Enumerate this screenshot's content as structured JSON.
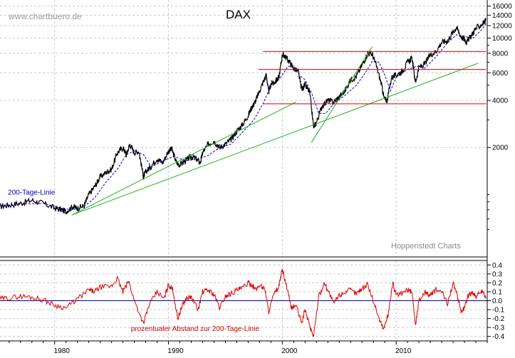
{
  "watermark": "www.chartbuero.de",
  "credit": "Hoppenstedt Charts",
  "chart_data": [
    {
      "type": "line",
      "title": "DAX",
      "y_scale": "log",
      "ylim": [
        400,
        17500
      ],
      "xlim": [
        1975.2,
        2018.0
      ],
      "yticks": [
        2000,
        4000,
        6000,
        8000,
        10000,
        12000,
        14000,
        16000
      ],
      "ytick_labels": [
        "2000",
        "4000",
        "6000",
        "8000",
        "10000",
        "12000",
        "14000",
        "16000"
      ],
      "xticks": [
        1980,
        1990,
        2000,
        2010
      ],
      "xtick_labels": [
        "1980",
        "1990",
        "2000",
        "2010"
      ],
      "grid": true,
      "series": [
        {
          "name": "DAX",
          "color": "#000000",
          "x": [
            1975.2,
            1976.0,
            1977.0,
            1978.0,
            1979.0,
            1980.0,
            1980.6,
            1981.0,
            1981.6,
            1982.0,
            1982.6,
            1983.0,
            1983.6,
            1984.0,
            1984.6,
            1985.0,
            1985.5,
            1986.0,
            1986.3,
            1986.6,
            1987.0,
            1987.4,
            1987.8,
            1988.0,
            1988.4,
            1989.0,
            1989.5,
            1990.0,
            1990.3,
            1990.7,
            1991.0,
            1991.5,
            1992.0,
            1992.4,
            1992.8,
            1993.0,
            1993.5,
            1994.0,
            1994.5,
            1995.0,
            1995.5,
            1996.0,
            1996.5,
            1997.0,
            1997.3,
            1997.6,
            1997.9,
            1998.3,
            1998.6,
            1998.8,
            1999.0,
            1999.4,
            1999.7,
            2000.0,
            2000.2,
            2000.6,
            2001.0,
            2001.4,
            2001.7,
            2002.0,
            2002.4,
            2002.75,
            2003.0,
            2003.5,
            2004.0,
            2004.5,
            2005.0,
            2005.5,
            2006.0,
            2006.5,
            2007.0,
            2007.5,
            2007.9,
            2008.3,
            2008.7,
            2008.95,
            2009.2,
            2009.6,
            2010.0,
            2010.5,
            2011.0,
            2011.4,
            2011.7,
            2012.0,
            2012.5,
            2013.0,
            2013.5,
            2014.0,
            2014.5,
            2015.0,
            2015.3,
            2015.7,
            2016.0,
            2016.2,
            2016.6,
            2017.0,
            2017.5,
            2017.9
          ],
          "values": [
            840,
            860,
            880,
            920,
            880,
            820,
            800,
            780,
            840,
            820,
            850,
            1000,
            1150,
            1300,
            1400,
            1450,
            1850,
            2000,
            1800,
            2100,
            1850,
            1900,
            1300,
            1400,
            1500,
            1700,
            1600,
            1900,
            1950,
            1600,
            1550,
            1650,
            1750,
            1700,
            1600,
            1850,
            2100,
            2200,
            2000,
            2100,
            2250,
            2550,
            2800,
            3200,
            3600,
            3900,
            4400,
            5200,
            5800,
            4500,
            5100,
            5300,
            5600,
            7800,
            7700,
            7100,
            6400,
            6100,
            4700,
            5000,
            4500,
            2700,
            2900,
            3700,
            4000,
            3900,
            4200,
            4600,
            5400,
            5700,
            6700,
            8000,
            7900,
            6500,
            5100,
            4100,
            4000,
            5600,
            5800,
            6100,
            7000,
            7400,
            5200,
            6500,
            6800,
            7800,
            8200,
            9400,
            9600,
            10900,
            11700,
            10200,
            9800,
            9400,
            10400,
            11500,
            12200,
            13000
          ]
        },
        {
          "name": "200-Tage-Linie",
          "color": "#0000c8",
          "style": "dashed",
          "x": [
            1975.2,
            1977.0,
            1979.0,
            1980.5,
            1981.5,
            1982.5,
            1983.5,
            1984.5,
            1985.5,
            1986.3,
            1987.0,
            1987.8,
            1988.5,
            1989.5,
            1990.5,
            1991.5,
            1992.5,
            1993.5,
            1994.5,
            1995.5,
            1996.5,
            1997.5,
            1998.3,
            1998.9,
            1999.5,
            2000.0,
            2000.5,
            2001.0,
            2001.5,
            2002.0,
            2002.6,
            2003.2,
            2003.8,
            2004.5,
            2005.5,
            2006.5,
            2007.3,
            2007.9,
            2008.5,
            2009.0,
            2009.5,
            2010.0,
            2011.0,
            2011.8,
            2012.5,
            2013.5,
            2014.5,
            2015.3,
            2016.0,
            2016.7,
            2017.5,
            2017.9
          ],
          "values": [
            850,
            870,
            880,
            820,
            800,
            830,
            950,
            1200,
            1450,
            1800,
            1900,
            1800,
            1500,
            1650,
            1750,
            1650,
            1680,
            1780,
            2000,
            2100,
            2500,
            3000,
            3800,
            4800,
            5200,
            5800,
            6600,
            6600,
            5800,
            5400,
            4400,
            3300,
            3300,
            3800,
            4300,
            5000,
            6000,
            7100,
            7000,
            5800,
            4600,
            5600,
            6300,
            6600,
            6400,
            7600,
            9300,
            10500,
            10300,
            9900,
            11300,
            12300
          ]
        },
        {
          "name": "Trendlinie A",
          "color": "#20b020",
          "x": [
            1981.5,
            2001.2
          ],
          "values": [
            740,
            3900
          ]
        },
        {
          "name": "Trendlinie B",
          "color": "#20b020",
          "x": [
            1981.5,
            2017.2
          ],
          "values": [
            740,
            6900
          ]
        },
        {
          "name": "Trendlinie C",
          "color": "#20b020",
          "x": [
            2002.55,
            2007.9
          ],
          "values": [
            2150,
            8800
          ]
        },
        {
          "name": "Horizontal 3800",
          "color": "#dd0000",
          "x": [
            1998.3,
            2017.9
          ],
          "values": [
            3800,
            3800
          ]
        },
        {
          "name": "Horizontal 6300",
          "color": "#dd0000",
          "x": [
            1997.9,
            2017.9
          ],
          "values": [
            6300,
            6300
          ]
        },
        {
          "name": "Horizontal 8200",
          "color": "#dd0000",
          "x": [
            1998.3,
            2017.9
          ],
          "values": [
            8200,
            8200
          ]
        }
      ],
      "annotations": [
        {
          "text": "200-Tage-Linie",
          "x": 1975.9,
          "y": 1000,
          "color": "#0000c8"
        }
      ]
    },
    {
      "type": "line",
      "title": "",
      "ylim": [
        -0.45,
        0.45
      ],
      "xlim": [
        1975.2,
        2018.0
      ],
      "yticks": [
        0.4,
        0.3,
        0.2,
        0.1,
        0.0,
        -0.1,
        -0.2,
        -0.3,
        -0.4
      ],
      "ytick_labels": [
        "0.4",
        "0.3",
        "0.2",
        "0.1",
        "0.0",
        "-0.1",
        "-0.2",
        "-0.3",
        "-0.4"
      ],
      "grid": true,
      "series": [
        {
          "name": "Abstand",
          "color": "#dd0000",
          "x": [
            1975.2,
            1976.0,
            1977.0,
            1978.0,
            1979.0,
            1980.0,
            1981.0,
            1982.0,
            1983.0,
            1983.5,
            1984.0,
            1985.0,
            1985.5,
            1986.0,
            1986.5,
            1987.0,
            1987.8,
            1988.3,
            1989.0,
            1989.6,
            1990.0,
            1990.4,
            1990.8,
            1991.2,
            1991.6,
            1992.0,
            1992.6,
            1993.0,
            1993.5,
            1994.0,
            1994.5,
            1995.0,
            1995.5,
            1996.0,
            1996.5,
            1997.0,
            1997.3,
            1997.7,
            1998.0,
            1998.5,
            1998.8,
            1999.2,
            1999.7,
            2000.0,
            2000.4,
            2000.8,
            2001.2,
            2001.7,
            2002.0,
            2002.5,
            2002.75,
            2003.2,
            2003.7,
            2004.0,
            2004.5,
            2005.0,
            2005.5,
            2006.0,
            2006.5,
            2007.0,
            2007.5,
            2008.0,
            2008.5,
            2008.9,
            2009.3,
            2009.7,
            2010.0,
            2010.5,
            2011.0,
            2011.4,
            2011.7,
            2012.0,
            2012.5,
            2013.0,
            2013.5,
            2014.0,
            2014.5,
            2015.0,
            2015.3,
            2015.7,
            2016.0,
            2016.3,
            2016.7,
            2017.0,
            2017.5,
            2017.9
          ],
          "values": [
            0.02,
            0.03,
            0.05,
            0.04,
            0.01,
            -0.05,
            -0.08,
            0.02,
            0.12,
            0.1,
            0.15,
            0.16,
            0.25,
            0.1,
            0.22,
            0.0,
            -0.25,
            -0.05,
            0.1,
            0.02,
            0.18,
            0.12,
            -0.2,
            -0.06,
            0.03,
            0.04,
            -0.1,
            0.1,
            0.12,
            0.07,
            -0.08,
            0.05,
            0.08,
            0.12,
            0.14,
            0.2,
            0.18,
            0.12,
            0.18,
            0.12,
            -0.12,
            0.05,
            0.16,
            0.35,
            0.14,
            -0.08,
            -0.05,
            -0.25,
            -0.1,
            -0.32,
            -0.4,
            0.05,
            0.2,
            0.12,
            -0.03,
            0.06,
            0.1,
            0.12,
            0.08,
            0.14,
            0.18,
            0.0,
            -0.2,
            -0.32,
            -0.15,
            0.2,
            0.06,
            0.08,
            0.12,
            0.1,
            -0.28,
            0.0,
            0.1,
            0.06,
            0.12,
            0.1,
            -0.03,
            0.2,
            0.08,
            -0.12,
            -0.08,
            0.05,
            0.1,
            0.05,
            0.1,
            0.04
          ]
        }
      ],
      "annotations": [
        {
          "text": "prozentualer Abstand zur 200-Tage-Linie",
          "x": 1986.7,
          "y": -0.34,
          "color": "#d00000"
        }
      ]
    }
  ]
}
